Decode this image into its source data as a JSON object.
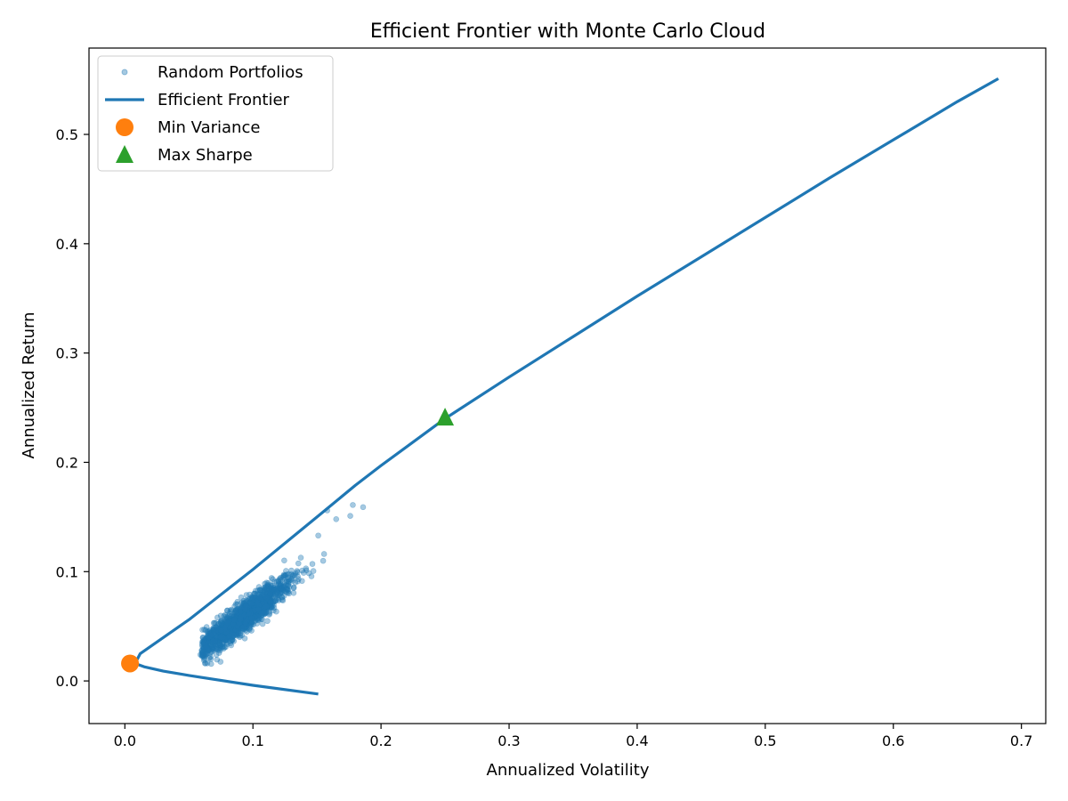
{
  "chart_data": {
    "type": "scatter",
    "title": "Efficient Frontier with Monte Carlo Cloud",
    "xlabel": "Annualized Volatility",
    "ylabel": "Annualized Return",
    "xlim": [
      -0.028,
      0.719
    ],
    "ylim": [
      -0.039,
      0.579
    ],
    "x_ticks": [
      0.0,
      0.1,
      0.2,
      0.3,
      0.4,
      0.5,
      0.6,
      0.7
    ],
    "x_tick_labels": [
      "0.0",
      "0.1",
      "0.2",
      "0.3",
      "0.4",
      "0.5",
      "0.6",
      "0.7"
    ],
    "y_ticks": [
      0.0,
      0.1,
      0.2,
      0.3,
      0.4,
      0.5
    ],
    "y_tick_labels": [
      "0.0",
      "0.1",
      "0.2",
      "0.3",
      "0.4",
      "0.5"
    ],
    "grid": false,
    "legend_position": "upper-left",
    "series": [
      {
        "name": "Random Portfolios",
        "kind": "scatter",
        "color": "#1f77b4",
        "opacity": 0.4,
        "cloud": {
          "count": 1500,
          "x_range": [
            0.06,
            0.19
          ],
          "trend": {
            "slope": 0.88,
            "intercept": -0.023
          },
          "spread": 0.007,
          "seed": 7
        },
        "outliers": [
          [
            0.186,
            0.159
          ],
          [
            0.178,
            0.161
          ],
          [
            0.165,
            0.148
          ],
          [
            0.158,
            0.156
          ],
          [
            0.059,
            0.024
          ],
          [
            0.065,
            0.035
          ],
          [
            0.062,
            0.047
          ],
          [
            0.151,
            0.133
          ],
          [
            0.176,
            0.151
          ]
        ]
      },
      {
        "name": "Efficient Frontier",
        "kind": "line",
        "color": "#1f77b4",
        "points": [
          [
            0.151,
            -0.012
          ],
          [
            0.1,
            -0.004
          ],
          [
            0.05,
            0.005
          ],
          [
            0.045,
            0.006
          ],
          [
            0.03,
            0.009
          ],
          [
            0.015,
            0.013
          ],
          [
            0.008,
            0.016
          ],
          [
            0.012,
            0.025
          ],
          [
            0.05,
            0.056
          ],
          [
            0.1,
            0.102
          ],
          [
            0.15,
            0.15
          ],
          [
            0.18,
            0.179
          ],
          [
            0.2,
            0.197
          ],
          [
            0.25,
            0.24
          ],
          [
            0.3,
            0.278
          ],
          [
            0.35,
            0.315
          ],
          [
            0.4,
            0.352
          ],
          [
            0.45,
            0.388
          ],
          [
            0.5,
            0.424
          ],
          [
            0.55,
            0.46
          ],
          [
            0.6,
            0.495
          ],
          [
            0.65,
            0.53
          ],
          [
            0.682,
            0.551
          ]
        ]
      },
      {
        "name": "Min Variance",
        "kind": "marker",
        "marker": "circle",
        "color": "#ff7f0e",
        "points": [
          [
            0.004,
            0.016
          ]
        ]
      },
      {
        "name": "Max Sharpe",
        "kind": "marker",
        "marker": "triangle",
        "color": "#2ca02c",
        "points": [
          [
            0.25,
            0.241
          ]
        ]
      }
    ]
  }
}
